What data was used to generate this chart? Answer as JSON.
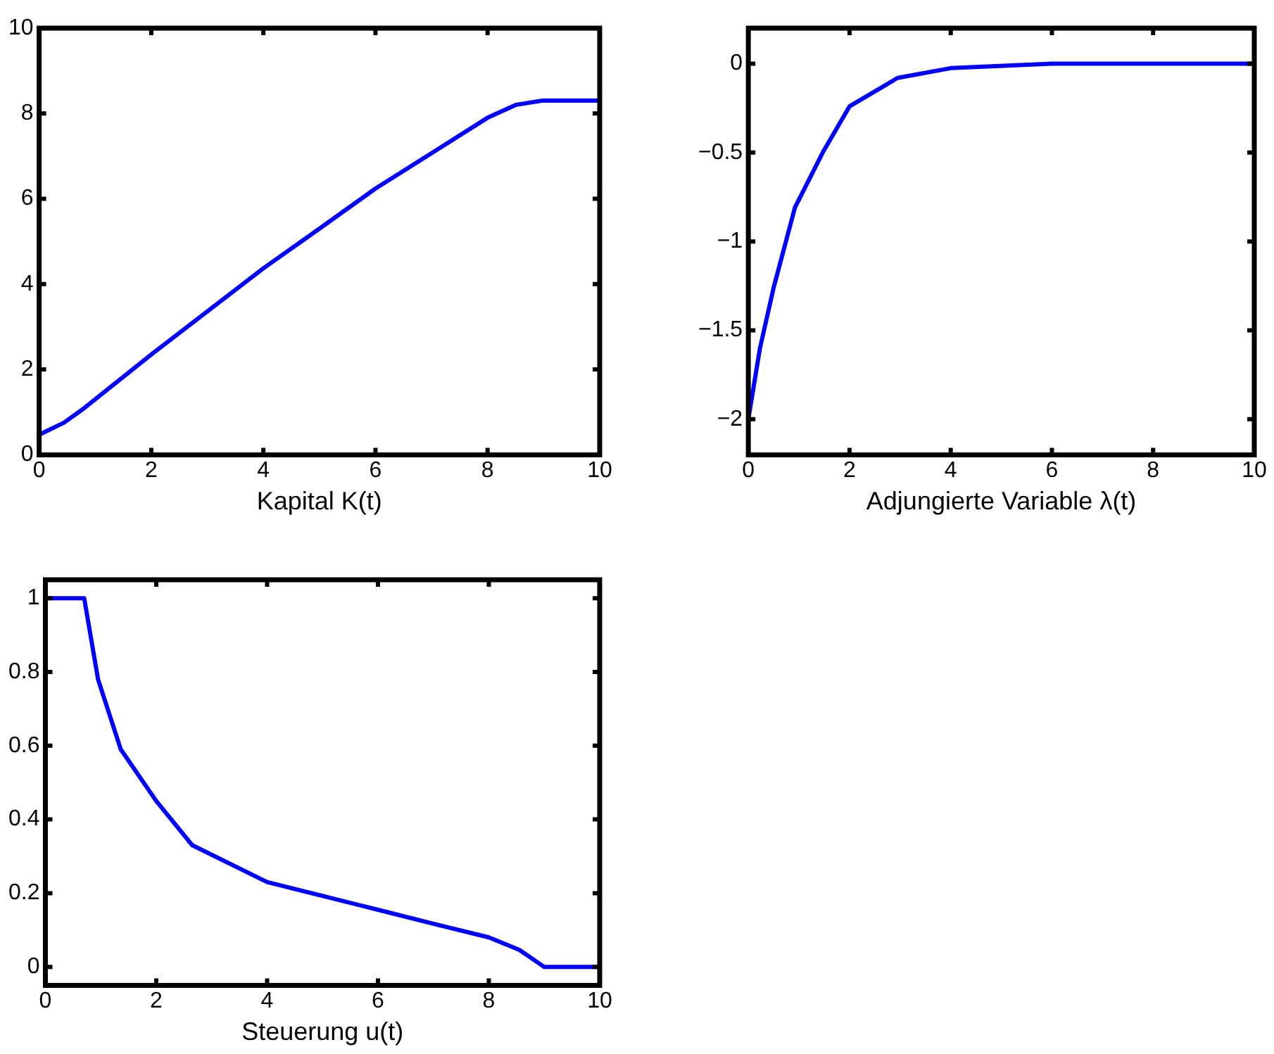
{
  "chart_data": [
    {
      "type": "line",
      "xlabel": "Kapital K(t)",
      "marker": "none",
      "line_style": "solid",
      "xlim": [
        0,
        10
      ],
      "ylim": [
        0,
        10
      ],
      "xticks": [
        0,
        2,
        4,
        6,
        8,
        10
      ],
      "yticks": [
        0,
        2,
        4,
        6,
        8,
        10
      ],
      "x": [
        0,
        0.44,
        0.81,
        2,
        3,
        4,
        5,
        6,
        7,
        8,
        8.5,
        8.97,
        10
      ],
      "series": [
        {
          "color": "#0000ff",
          "values": [
            0.47,
            0.75,
            1.1,
            2.35,
            3.36,
            4.37,
            5.3,
            6.24,
            7.07,
            7.9,
            8.2,
            8.3,
            8.3
          ]
        }
      ]
    },
    {
      "type": "line",
      "xlabel": "Adjungierte Variable λ(t)",
      "marker": "none",
      "line_style": "solid",
      "xlim": [
        0,
        10
      ],
      "ylim": [
        -2.2,
        0.2
      ],
      "xticks": [
        0,
        2,
        4,
        6,
        8,
        10
      ],
      "yticks": [
        {
          "value": -2,
          "label": "−2"
        },
        {
          "value": -1.5,
          "label": "−1.5"
        },
        {
          "value": -1,
          "label": "−1"
        },
        {
          "value": -0.5,
          "label": "−0.5"
        },
        0
      ],
      "x": [
        0,
        0.23,
        0.5,
        0.92,
        1.47,
        2,
        2.95,
        4,
        6,
        8,
        10
      ],
      "series": [
        {
          "color": "#0000ff",
          "values": [
            -2,
            -1.6,
            -1.26,
            -0.81,
            -0.5,
            -0.24,
            -0.08,
            -0.025,
            0,
            0,
            0
          ]
        }
      ]
    },
    {
      "type": "line",
      "xlabel": "Steuerung u(t)",
      "marker": "none",
      "line_style": "solid",
      "xlim": [
        0,
        10
      ],
      "ylim": [
        -0.05,
        1.05
      ],
      "xticks": [
        0,
        2,
        4,
        6,
        8,
        10
      ],
      "yticks": [
        0,
        0.2,
        0.4,
        0.6,
        0.8,
        1
      ],
      "x": [
        0,
        0.7,
        0.95,
        1.36,
        2,
        2.65,
        4,
        6,
        7,
        8,
        8.55,
        9,
        10
      ],
      "series": [
        {
          "color": "#0000ff",
          "values": [
            1,
            1,
            0.78,
            0.59,
            0.45,
            0.33,
            0.23,
            0.155,
            0.117,
            0.08,
            0.046,
            0,
            0
          ]
        }
      ]
    }
  ]
}
